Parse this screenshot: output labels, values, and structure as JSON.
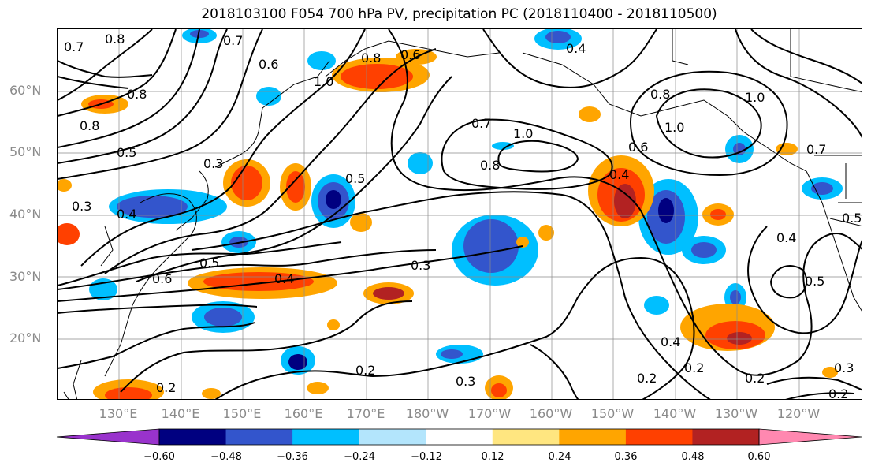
{
  "title": "2018103100 F054 700 hPa PV, precipitation PC (2018110400 - 2018110500)",
  "lat_labels": [
    "60°N",
    "50°N",
    "40°N",
    "30°N",
    "20°N"
  ],
  "lon_labels": [
    "130°E",
    "140°E",
    "150°E",
    "160°E",
    "170°E",
    "180°W",
    "170°W",
    "160°W",
    "150°W",
    "140°W",
    "130°W",
    "120°W"
  ],
  "colorbar": {
    "ticks": [
      "−0.60",
      "−0.48",
      "−0.36",
      "−0.24",
      "−0.12",
      "0.12",
      "0.24",
      "0.36",
      "0.48",
      "0.60"
    ],
    "colors": [
      "#9933cc",
      "#000080",
      "#3355cc",
      "#00bfff",
      "#b3e5fc",
      "#ffffff",
      "#ffe680",
      "#ffa500",
      "#ff4000",
      "#b22222",
      "#ff88b0"
    ]
  },
  "contour_labels": [
    "0.7",
    "0.8",
    "0.7",
    "0.6",
    "0.8",
    "0.6",
    "0.4",
    "0.8",
    "1.0",
    "0.8",
    "0.5",
    "0.3",
    "0.5",
    "0.7",
    "1.0",
    "0.8",
    "0.6",
    "0.8",
    "1.0",
    "1.0",
    "0.7",
    "0.4",
    "0.5",
    "0.4",
    "0.3",
    "0.5",
    "0.6",
    "0.4",
    "0.3",
    "0.4",
    "0.5",
    "0.2",
    "0.3",
    "0.2",
    "0.2",
    "0.2",
    "0.2",
    "0.2",
    "0.3",
    "0.4"
  ],
  "precip_colors": {
    "neg_strong": "#000080",
    "neg_mid": "#3355cc",
    "neg_weak": "#00bfff",
    "pos_weak": "#ffa500",
    "pos_mid": "#ff4000",
    "pos_strong": "#b22222"
  }
}
